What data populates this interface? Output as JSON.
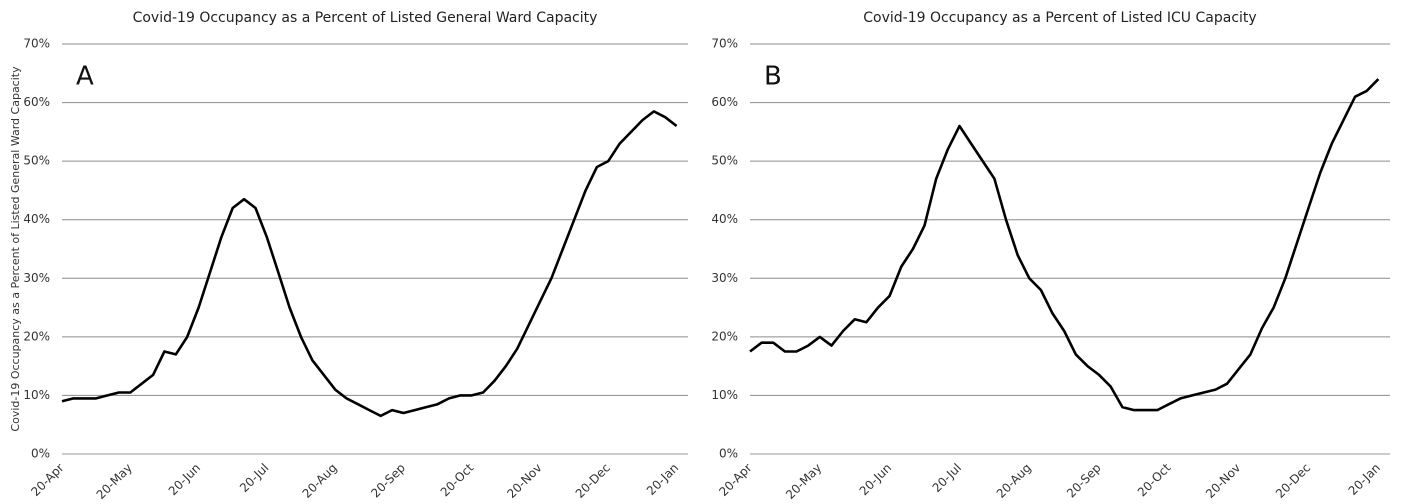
{
  "chart_data": [
    {
      "type": "line",
      "title": "Covid-19 Occupancy as a Percent of Listed General Ward Capacity",
      "y_label": "Covid-19 Occupancy as a Percent of Listed General Ward Capacity",
      "annotation": "A",
      "color": "#000000",
      "x": [
        "20-Apr",
        "25-Apr",
        "30-Apr",
        "5-May",
        "10-May",
        "15-May",
        "20-May",
        "25-May",
        "30-May",
        "5-Jun",
        "10-Jun",
        "15-Jun",
        "20-Jun",
        "25-Jun",
        "30-Jun",
        "5-Jul",
        "10-Jul",
        "15-Jul",
        "20-Jul",
        "25-Jul",
        "30-Jul",
        "5-Aug",
        "10-Aug",
        "15-Aug",
        "20-Aug",
        "25-Aug",
        "30-Aug",
        "5-Sep",
        "10-Sep",
        "15-Sep",
        "20-Sep",
        "25-Sep",
        "30-Sep",
        "5-Oct",
        "10-Oct",
        "15-Oct",
        "20-Oct",
        "25-Oct",
        "30-Oct",
        "5-Nov",
        "10-Nov",
        "15-Nov",
        "20-Nov",
        "25-Nov",
        "30-Nov",
        "5-Dec",
        "10-Dec",
        "15-Dec",
        "20-Dec",
        "25-Dec",
        "30-Dec",
        "5-Jan",
        "10-Jan",
        "15-Jan",
        "20-Jan"
      ],
      "values": [
        9,
        9.5,
        9.5,
        9.5,
        10,
        10.5,
        10.5,
        12,
        13.5,
        17.5,
        17,
        20,
        25,
        31,
        37,
        42,
        43.5,
        42,
        37,
        31,
        25,
        20,
        16,
        13.5,
        11,
        9.5,
        8.5,
        7.5,
        6.5,
        7.5,
        7,
        7.5,
        8,
        8.5,
        9.5,
        10,
        10,
        10.5,
        12.5,
        15,
        18,
        22,
        26,
        30,
        35,
        40,
        45,
        49,
        50,
        53,
        55,
        57,
        58.5,
        57.5,
        56
      ],
      "xticks": [
        "20-Apr",
        "20-May",
        "20-Jun",
        "20-Jul",
        "20-Aug",
        "20-Sep",
        "20-Oct",
        "20-Nov",
        "20-Dec",
        "20-Jan"
      ],
      "ylim": [
        0,
        70
      ],
      "yticks": [
        {
          "value": 0,
          "label": "0%"
        },
        {
          "value": 10,
          "label": "10%"
        },
        {
          "value": 20,
          "label": "20%"
        },
        {
          "value": 30,
          "label": "30%"
        },
        {
          "value": 40,
          "label": "40%"
        },
        {
          "value": 50,
          "label": "50%"
        },
        {
          "value": 60,
          "label": "60%"
        },
        {
          "value": 70,
          "label": "70%"
        }
      ],
      "grid": true
    },
    {
      "type": "line",
      "title": "Covid-19 Occupancy as a Percent of Listed ICU Capacity",
      "annotation": "B",
      "color": "#000000",
      "x": [
        "20-Apr",
        "25-Apr",
        "30-Apr",
        "5-May",
        "10-May",
        "15-May",
        "20-May",
        "25-May",
        "30-May",
        "5-Jun",
        "10-Jun",
        "15-Jun",
        "20-Jun",
        "25-Jun",
        "30-Jun",
        "5-Jul",
        "10-Jul",
        "15-Jul",
        "20-Jul",
        "25-Jul",
        "30-Jul",
        "5-Aug",
        "10-Aug",
        "15-Aug",
        "20-Aug",
        "25-Aug",
        "30-Aug",
        "5-Sep",
        "10-Sep",
        "15-Sep",
        "20-Sep",
        "25-Sep",
        "30-Sep",
        "5-Oct",
        "10-Oct",
        "15-Oct",
        "20-Oct",
        "25-Oct",
        "30-Oct",
        "5-Nov",
        "10-Nov",
        "15-Nov",
        "20-Nov",
        "25-Nov",
        "30-Nov",
        "5-Dec",
        "10-Dec",
        "15-Dec",
        "20-Dec",
        "25-Dec",
        "30-Dec",
        "5-Jan",
        "10-Jan",
        "15-Jan",
        "20-Jan"
      ],
      "values": [
        17.5,
        19,
        19,
        17.5,
        17.5,
        18.5,
        20,
        18.5,
        21,
        23,
        22.5,
        25,
        27,
        32,
        35,
        39,
        47,
        52,
        56,
        53,
        50,
        47,
        40,
        34,
        30,
        28,
        24,
        21,
        17,
        15,
        13.5,
        11.5,
        8,
        7.5,
        7.5,
        7.5,
        8.5,
        9.5,
        10,
        10.5,
        11,
        12,
        14.5,
        17,
        21.5,
        25,
        30,
        36,
        42,
        48,
        53,
        57,
        61,
        62,
        64
      ],
      "xticks": [
        "20-Apr",
        "20-May",
        "20-Jun",
        "20-Jul",
        "20-Aug",
        "20-Sep",
        "20-Oct",
        "20-Nov",
        "20-Dec",
        "20-Jan"
      ],
      "ylim": [
        0,
        70
      ],
      "yticks": [
        {
          "value": 0,
          "label": "0%"
        },
        {
          "value": 10,
          "label": "10%"
        },
        {
          "value": 20,
          "label": "20%"
        },
        {
          "value": 30,
          "label": "30%"
        },
        {
          "value": 40,
          "label": "40%"
        },
        {
          "value": 50,
          "label": "50%"
        },
        {
          "value": 60,
          "label": "60%"
        },
        {
          "value": 70,
          "label": "70%"
        }
      ],
      "grid": true
    }
  ]
}
